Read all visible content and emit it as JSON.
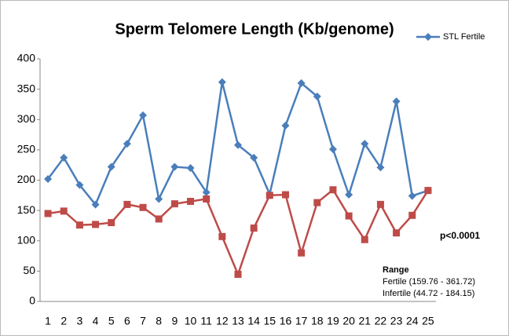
{
  "chart_data": {
    "type": "line",
    "title": "Sperm Telomere Length (Kb/genome)",
    "categories": [
      "1",
      "2",
      "3",
      "4",
      "5",
      "6",
      "7",
      "8",
      "9",
      "10",
      "11",
      "12",
      "13",
      "14",
      "15",
      "16",
      "17",
      "18",
      "19",
      "20",
      "21",
      "22",
      "23",
      "24",
      "25"
    ],
    "series": [
      {
        "name": "STL Fertile",
        "color": "#4a7ebb",
        "marker": "diamond",
        "values": [
          202,
          237,
          192,
          159.76,
          222,
          260,
          307,
          169,
          222,
          220,
          180,
          361.72,
          258,
          237,
          177,
          290,
          360,
          338,
          251,
          176,
          260,
          221,
          330,
          174,
          183
        ]
      },
      {
        "color": "#be4b48",
        "marker": "square",
        "values": [
          145,
          149,
          126,
          127,
          130,
          160,
          155,
          136,
          161,
          165,
          169,
          107,
          44.72,
          121,
          175,
          176,
          80,
          163,
          184.15,
          141,
          102,
          160,
          113,
          142,
          183
        ]
      }
    ],
    "ylim": [
      0,
      400
    ],
    "yticks": [
      0,
      50,
      100,
      150,
      200,
      250,
      300,
      350,
      400
    ],
    "grid": false,
    "legend": "top-right",
    "annotations": [
      "p<0.0001",
      "Range",
      "Fertile (159.76 - 361.72)",
      "Infertile (44.72 - 184.15)"
    ]
  }
}
